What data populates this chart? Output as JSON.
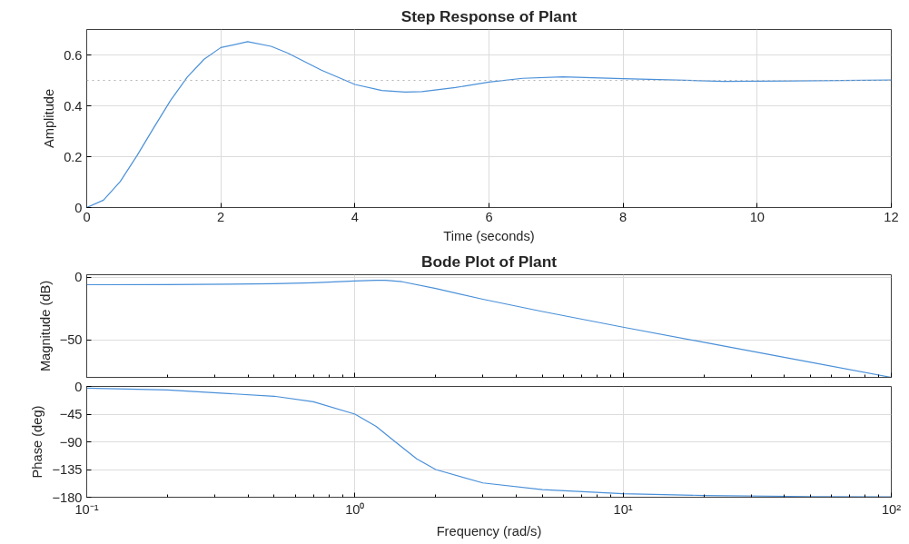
{
  "chart_data": [
    {
      "type": "line",
      "title": "Step Response of Plant",
      "xlabel": "Time (seconds)",
      "ylabel": "Amplitude",
      "xlim": [
        0,
        12
      ],
      "ylim": [
        0,
        0.7
      ],
      "xticks": [
        0,
        2,
        4,
        6,
        8,
        10,
        12
      ],
      "yticks": [
        0,
        0.2,
        0.4,
        0.6
      ],
      "grid": true,
      "line_style": "solid",
      "ref_lines": [
        {
          "axis": "y",
          "value": 0.5,
          "color": "#b4b4b4",
          "line_style": "dotted"
        }
      ],
      "series": [
        {
          "color": "#4a90d9",
          "x": [
            0,
            0.25,
            0.5,
            0.75,
            1,
            1.25,
            1.5,
            1.75,
            2,
            2.4,
            2.75,
            3,
            3.5,
            4,
            4.4,
            4.75,
            5,
            5.5,
            6,
            6.5,
            7.1,
            8,
            9.5,
            10.5,
            12
          ],
          "values": [
            0,
            0.029,
            0.102,
            0.204,
            0.314,
            0.421,
            0.513,
            0.583,
            0.629,
            0.652,
            0.634,
            0.607,
            0.54,
            0.484,
            0.46,
            0.454,
            0.456,
            0.472,
            0.493,
            0.508,
            0.514,
            0.507,
            0.496,
            0.498,
            0.501
          ]
        }
      ]
    },
    {
      "type": "line",
      "title": "Bode Plot of Plant",
      "ylabel": "Magnitude (dB)",
      "log": "x",
      "xlim": [
        0.1,
        100
      ],
      "ylim": [
        -80,
        2
      ],
      "xticks": [
        {
          "value": 0.1,
          "label": null
        },
        {
          "value": 1,
          "label": null
        },
        {
          "value": 10,
          "label": null
        },
        {
          "value": 100,
          "label": null
        }
      ],
      "yticks": [
        0,
        -50
      ],
      "tick_labels": "y",
      "grid": true,
      "line_style": "solid",
      "series": [
        {
          "color": "#4a90d9",
          "x": [
            0.1,
            0.2,
            0.5,
            0.7,
            1,
            1.2,
            1.3,
            1.5,
            2,
            3,
            5,
            10,
            20,
            50,
            100
          ],
          "values": [
            -6.0,
            -5.9,
            -5.2,
            -4.4,
            -3.0,
            -2.4,
            -2.5,
            -3.6,
            -9.0,
            -17.6,
            -27.4,
            -39.9,
            -52.0,
            -68.0,
            -80.0
          ]
        }
      ]
    },
    {
      "type": "line",
      "xlabel": "Frequency (rad/s)",
      "ylabel": "Phase (deg)",
      "log": "x",
      "xlim": [
        0.1,
        100
      ],
      "ylim": [
        -180,
        0
      ],
      "xticks": [
        {
          "value": 0.1,
          "label": "10⁻¹"
        },
        {
          "value": 1,
          "label": "10⁰"
        },
        {
          "value": 10,
          "label": "10¹"
        },
        {
          "value": 100,
          "label": "10²"
        }
      ],
      "yticks": [
        0,
        -45,
        -90,
        -135,
        -180
      ],
      "grid": true,
      "line_style": "solid",
      "series": [
        {
          "color": "#4a90d9",
          "x": [
            0.1,
            0.2,
            0.5,
            0.7,
            1,
            1.2,
            1.414,
            1.7,
            2,
            3,
            5,
            10,
            20,
            50,
            100
          ],
          "values": [
            -2.9,
            -5.8,
            -15.9,
            -24.9,
            -45,
            -65,
            -90,
            -117.6,
            -135,
            -156.8,
            -167.7,
            -174.2,
            -177.1,
            -178.9,
            -179.4
          ]
        }
      ]
    }
  ]
}
